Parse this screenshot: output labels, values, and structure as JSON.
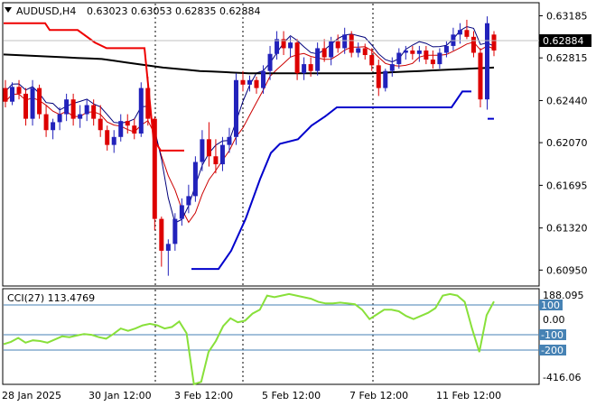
{
  "header": {
    "symbol_label": "AUDUSD,H4",
    "ohlc": "0.63023 0.63053 0.62835 0.62884"
  },
  "price_panel": {
    "current_price": "0.62884",
    "y_ticks": [
      "0.63185",
      "0.62815",
      "0.62440",
      "0.62070",
      "0.61695",
      "0.61320",
      "0.60950"
    ]
  },
  "cci_panel": {
    "label": "CCI(27) 113.4769",
    "top_value": "188.095",
    "bottom_value": "-416.06",
    "levels": [
      "100",
      "0.00",
      "-100",
      "-200"
    ]
  },
  "x_axis": {
    "labels": [
      "28 Jan 2025",
      "30 Jan 12:00",
      "3 Feb 12:00",
      "5 Feb 12:00",
      "7 Feb 12:00",
      "11 Feb 12:00"
    ]
  },
  "colors": {
    "bull": "#2222bb",
    "bear": "#dd0000",
    "ma_long": "#000000",
    "ma_short": "#cc0000",
    "envelope": "#00007a",
    "step_upper": "#ee0000",
    "step_lower": "#0000cc",
    "cci": "#88e03a",
    "level_box": "#4682b4"
  },
  "chart_data": {
    "type": "candlestick",
    "symbol": "AUDUSD",
    "timeframe": "H4",
    "ylim": [
      0.6081,
      0.633
    ],
    "x_labels": [
      "28 Jan 2025",
      "30 Jan 12:00",
      "3 Feb 12:00",
      "5 Feb 12:00",
      "7 Feb 12:00",
      "11 Feb 12:00"
    ],
    "last_price": 0.62884,
    "candles": [
      [
        0.6255,
        0.6262,
        0.6238,
        0.6243
      ],
      [
        0.6243,
        0.626,
        0.624,
        0.6256
      ],
      [
        0.6256,
        0.6262,
        0.6245,
        0.625
      ],
      [
        0.625,
        0.6255,
        0.6222,
        0.6228
      ],
      [
        0.6228,
        0.6262,
        0.6222,
        0.6255
      ],
      [
        0.6255,
        0.6258,
        0.6228,
        0.6232
      ],
      [
        0.6232,
        0.624,
        0.6212,
        0.6218
      ],
      [
        0.6218,
        0.6228,
        0.621,
        0.6225
      ],
      [
        0.6225,
        0.6238,
        0.6218,
        0.6232
      ],
      [
        0.6232,
        0.625,
        0.6226,
        0.6245
      ],
      [
        0.6245,
        0.625,
        0.6222,
        0.6228
      ],
      [
        0.6228,
        0.624,
        0.622,
        0.6232
      ],
      [
        0.6232,
        0.6245,
        0.6226,
        0.624
      ],
      [
        0.624,
        0.6245,
        0.6222,
        0.6228
      ],
      [
        0.6228,
        0.624,
        0.6212,
        0.6218
      ],
      [
        0.6218,
        0.6222,
        0.62,
        0.6205
      ],
      [
        0.6205,
        0.6218,
        0.6198,
        0.6212
      ],
      [
        0.6212,
        0.6232,
        0.6208,
        0.6226
      ],
      [
        0.6226,
        0.6232,
        0.6215,
        0.6222
      ],
      [
        0.6222,
        0.6228,
        0.621,
        0.6215
      ],
      [
        0.6215,
        0.626,
        0.6212,
        0.6255
      ],
      [
        0.6255,
        0.6265,
        0.6222,
        0.6228
      ],
      [
        0.6228,
        0.623,
        0.613,
        0.614
      ],
      [
        0.614,
        0.6142,
        0.6098,
        0.6112
      ],
      [
        0.6112,
        0.6122,
        0.609,
        0.6118
      ],
      [
        0.6118,
        0.6145,
        0.6112,
        0.614
      ],
      [
        0.614,
        0.6158,
        0.6134,
        0.6152
      ],
      [
        0.6152,
        0.617,
        0.6145,
        0.616
      ],
      [
        0.616,
        0.6195,
        0.6155,
        0.619
      ],
      [
        0.619,
        0.6218,
        0.6182,
        0.621
      ],
      [
        0.621,
        0.6225,
        0.6186,
        0.6195
      ],
      [
        0.6195,
        0.621,
        0.618,
        0.6188
      ],
      [
        0.6188,
        0.6212,
        0.6182,
        0.6205
      ],
      [
        0.6205,
        0.622,
        0.6198,
        0.6212
      ],
      [
        0.6212,
        0.6268,
        0.6205,
        0.6262
      ],
      [
        0.6262,
        0.627,
        0.6252,
        0.6258
      ],
      [
        0.6258,
        0.6266,
        0.6252,
        0.6262
      ],
      [
        0.6262,
        0.6265,
        0.625,
        0.6255
      ],
      [
        0.6255,
        0.6275,
        0.625,
        0.627
      ],
      [
        0.627,
        0.6292,
        0.6262,
        0.6285
      ],
      [
        0.6285,
        0.6305,
        0.628,
        0.6298
      ],
      [
        0.6298,
        0.6305,
        0.6284,
        0.629
      ],
      [
        0.629,
        0.63,
        0.6282,
        0.6295
      ],
      [
        0.6295,
        0.6298,
        0.6262,
        0.6268
      ],
      [
        0.6268,
        0.6282,
        0.6262,
        0.6276
      ],
      [
        0.6276,
        0.6282,
        0.6265,
        0.627
      ],
      [
        0.627,
        0.6295,
        0.6266,
        0.629
      ],
      [
        0.629,
        0.6298,
        0.6278,
        0.6282
      ],
      [
        0.6282,
        0.63,
        0.6275,
        0.6296
      ],
      [
        0.6296,
        0.6302,
        0.6286,
        0.629
      ],
      [
        0.629,
        0.6308,
        0.6285,
        0.6302
      ],
      [
        0.6302,
        0.6305,
        0.6282,
        0.6286
      ],
      [
        0.6286,
        0.6295,
        0.6282,
        0.629
      ],
      [
        0.629,
        0.6294,
        0.628,
        0.6284
      ],
      [
        0.6284,
        0.629,
        0.627,
        0.6275
      ],
      [
        0.6275,
        0.628,
        0.6248,
        0.6255
      ],
      [
        0.6255,
        0.6272,
        0.6252,
        0.627
      ],
      [
        0.627,
        0.6282,
        0.6265,
        0.6276
      ],
      [
        0.6276,
        0.629,
        0.6272,
        0.6286
      ],
      [
        0.6286,
        0.6292,
        0.628,
        0.6288
      ],
      [
        0.6288,
        0.6292,
        0.628,
        0.6285
      ],
      [
        0.6285,
        0.6292,
        0.6278,
        0.6288
      ],
      [
        0.6288,
        0.6292,
        0.6276,
        0.628
      ],
      [
        0.628,
        0.6288,
        0.6272,
        0.6276
      ],
      [
        0.6276,
        0.629,
        0.6272,
        0.6286
      ],
      [
        0.6286,
        0.6296,
        0.6282,
        0.6292
      ],
      [
        0.6292,
        0.6308,
        0.6288,
        0.6302
      ],
      [
        0.6302,
        0.6312,
        0.6294,
        0.6306
      ],
      [
        0.6306,
        0.6315,
        0.6298,
        0.63
      ],
      [
        0.63,
        0.6305,
        0.6282,
        0.6286
      ],
      [
        0.6286,
        0.629,
        0.6238,
        0.6245
      ],
      [
        0.6245,
        0.6318,
        0.6236,
        0.6312
      ],
      [
        0.6302,
        0.6305,
        0.6283,
        0.6288
      ]
    ],
    "ma_long": [
      0.62845,
      0.6284,
      0.62835,
      0.6283,
      0.62825,
      0.6282,
      0.62815,
      0.6281,
      0.62805,
      0.6279,
      0.62775,
      0.6276,
      0.62745,
      0.6273,
      0.6272,
      0.6271,
      0.627,
      0.62695,
      0.6269,
      0.62685,
      0.6268,
      0.6268,
      0.6268,
      0.6268,
      0.6268,
      0.6268,
      0.6268,
      0.6268,
      0.6268,
      0.6268,
      0.6268,
      0.62685,
      0.6269,
      0.62695,
      0.627,
      0.62705,
      0.6271,
      0.62715,
      0.6272,
      0.62725,
      0.6273
    ],
    "cci": {
      "label": "CCI(27) 113.4769",
      "ylim": [
        -416.06,
        188.095
      ],
      "levels": [
        100,
        0,
        -100,
        -200
      ],
      "values": [
        -160,
        -145,
        -120,
        -150,
        -135,
        -140,
        -150,
        -130,
        -110,
        -115,
        -105,
        -95,
        -100,
        -115,
        -125,
        -95,
        -60,
        -75,
        -60,
        -40,
        -30,
        -40,
        -60,
        -50,
        -15,
        -90,
        -415,
        -400,
        -210,
        -140,
        -45,
        5,
        -20,
        -10,
        35,
        60,
        150,
        140,
        150,
        160,
        150,
        140,
        130,
        110,
        100,
        100,
        105,
        100,
        95,
        60,
        0,
        30,
        60,
        60,
        50,
        20,
        0,
        20,
        40,
        70,
        150,
        160,
        150,
        110,
        -60,
        -210,
        25,
        113
      ]
    }
  }
}
